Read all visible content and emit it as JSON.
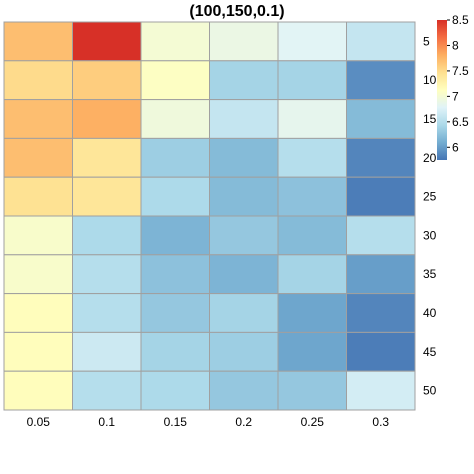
{
  "chart_data": {
    "type": "heatmap",
    "title": "(100,150,0.1)",
    "x_categories": [
      "0.05",
      "0.1",
      "0.15",
      "0.2",
      "0.25",
      "0.3"
    ],
    "y_categories": [
      "5",
      "10",
      "15",
      "20",
      "25",
      "30",
      "35",
      "40",
      "45",
      "50"
    ],
    "values": [
      [
        7.7,
        8.5,
        7.0,
        6.9,
        6.8,
        6.6
      ],
      [
        7.5,
        7.6,
        7.1,
        6.4,
        6.4,
        5.9
      ],
      [
        7.7,
        7.8,
        6.95,
        6.6,
        6.85,
        6.2
      ],
      [
        7.7,
        7.4,
        6.35,
        6.2,
        6.5,
        5.85
      ],
      [
        7.45,
        7.4,
        6.45,
        6.2,
        6.25,
        5.8
      ],
      [
        7.05,
        6.45,
        6.15,
        6.3,
        6.2,
        6.5
      ],
      [
        7.05,
        6.5,
        6.25,
        6.15,
        6.4,
        6.0
      ],
      [
        7.15,
        6.5,
        6.3,
        6.4,
        6.05,
        5.85
      ],
      [
        7.15,
        6.65,
        6.4,
        6.35,
        6.05,
        5.8
      ],
      [
        7.15,
        6.5,
        6.45,
        6.3,
        6.3,
        6.7
      ]
    ],
    "colorbar": {
      "ticks": [
        "8.5",
        "8",
        "7.5",
        "7",
        "6.5",
        "6"
      ],
      "range": [
        5.75,
        8.5
      ],
      "colors": [
        "#4575b4",
        "#74add1",
        "#abd9e9",
        "#e0f3f8",
        "#ffffbf",
        "#fee090",
        "#fdae61",
        "#f46d43",
        "#d73027"
      ]
    }
  }
}
